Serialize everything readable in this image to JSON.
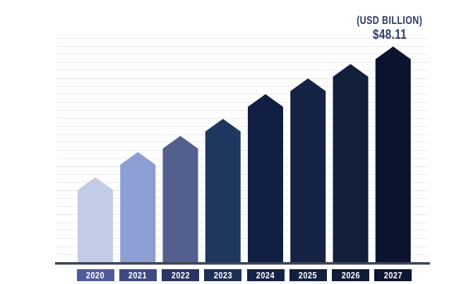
{
  "page": {
    "background": "#ffffff"
  },
  "header": {
    "unit_label": "(USD BILLION)",
    "value_label": "$48.11"
  },
  "chart_data": {
    "type": "bar",
    "title": "(USD BILLION)",
    "subtitle": "",
    "xlabel": "",
    "ylabel": "",
    "categories": [
      "2020",
      "2021",
      "2022",
      "2023",
      "2024",
      "2025",
      "2026",
      "2027"
    ],
    "values": [
      19.0,
      24.6,
      28.2,
      32.0,
      37.5,
      41.0,
      44.2,
      48.11
    ],
    "unit": "USD Billion",
    "data_labels": {
      "2027": "$48.11"
    },
    "ylim": [
      0,
      50
    ],
    "grid": true,
    "legend": "none",
    "bar_shape": "pentagon-arrow-top",
    "bar_colors": [
      "#C3CCE6",
      "#8C9ED2",
      "#535F8D",
      "#1E3860",
      "#111E44",
      "#142243",
      "#111E3C",
      "#0A142E"
    ],
    "label_box_colors": [
      "#4F5C99",
      "#3E4A81",
      "#293462",
      "#1C2F54",
      "#132245",
      "#12203E",
      "#101C38",
      "#0C1730"
    ],
    "title_color": "#2B3A68",
    "axis_color": "#3E4456",
    "gridline_color": "#E9E9ED"
  }
}
